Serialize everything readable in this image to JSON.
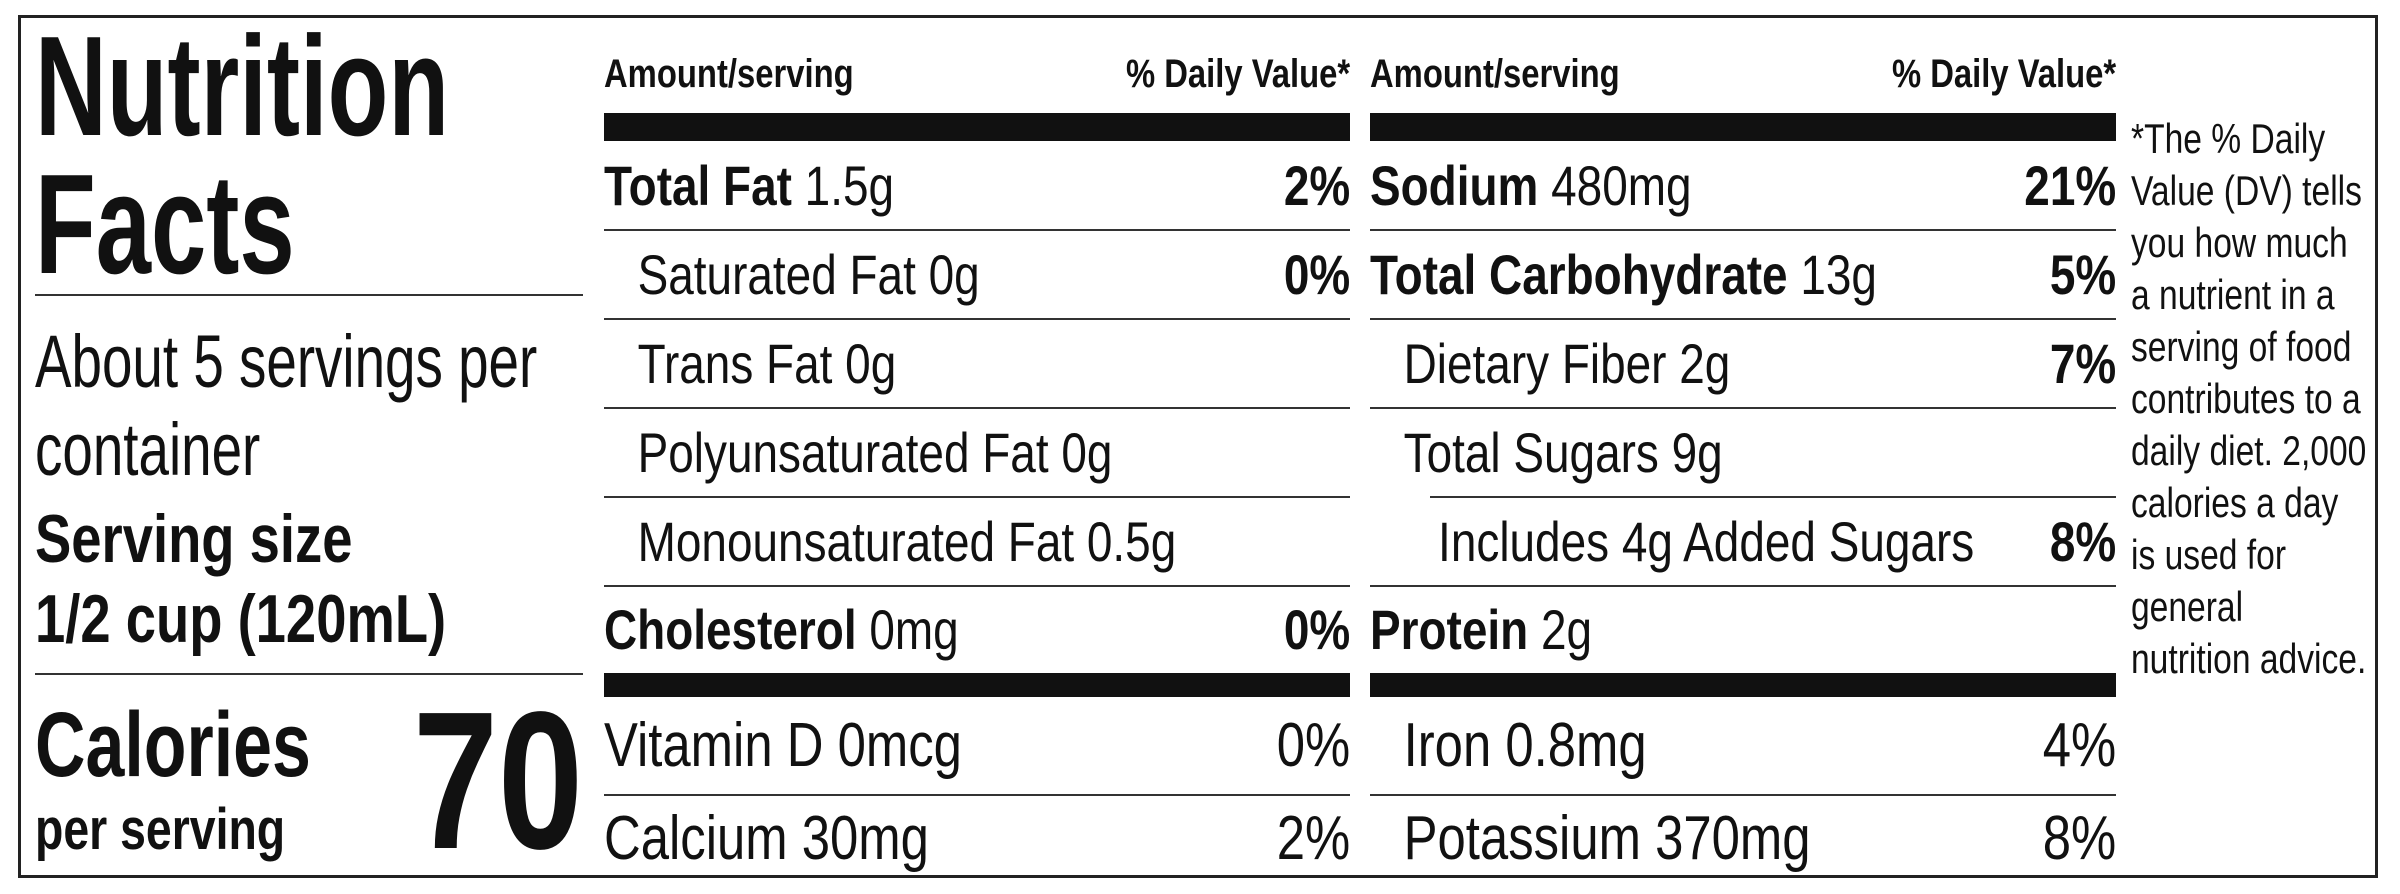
{
  "title": "Nutrition Facts",
  "servings": "About 5 servings per container",
  "serving_size_label": "Serving size",
  "serving_size": "1/2 cup (120mL)",
  "calories_label": "Calories",
  "calories_sub": "per serving",
  "calories": "70",
  "left": {
    "header_amount": "Amount/serving",
    "header_dv": "% Daily Value*",
    "nutrients": [
      {
        "name": "Total Fat",
        "amount": "1.5g",
        "dv": "2%"
      },
      {
        "name": "Saturated Fat 0g",
        "dv": "0%"
      },
      {
        "name": "Trans Fat 0g"
      },
      {
        "name": "Polyunsaturated Fat 0g"
      },
      {
        "name": "Monounsaturated Fat 0.5g"
      },
      {
        "name": "Cholesterol",
        "amount": "0mg",
        "dv": "0%"
      }
    ],
    "vitamins": [
      {
        "name": "Vitamin D 0mcg",
        "dv": "0%"
      },
      {
        "name": "Calcium 30mg",
        "dv": "2%"
      }
    ]
  },
  "right": {
    "header_amount": "Amount/serving",
    "header_dv": "% Daily Value*",
    "nutrients": [
      {
        "name": "Sodium",
        "amount": "480mg",
        "dv": "21%"
      },
      {
        "name": "Total Carbohydrate",
        "amount": "13g",
        "dv": "5%"
      },
      {
        "name": "Dietary Fiber 2g",
        "dv": "7%"
      },
      {
        "name": "Total Sugars 9g"
      },
      {
        "name": "Includes 4g Added Sugars",
        "dv": "8%"
      },
      {
        "name": "Protein",
        "amount": "2g"
      }
    ],
    "vitamins": [
      {
        "name": "Iron 0.8mg",
        "dv": "4%"
      },
      {
        "name": "Potassium 370mg",
        "dv": "8%"
      }
    ]
  },
  "footnote": "*The % Daily Value (DV) tells you how much a nutrient in a serving of food contributes to a daily diet. 2,000 calories a day is used for general nutrition advice."
}
